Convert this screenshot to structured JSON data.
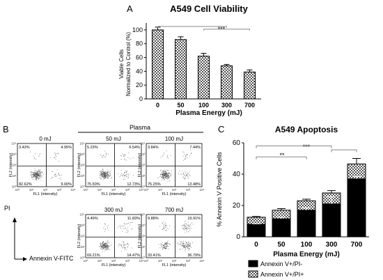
{
  "panel_a": {
    "letter": "A",
    "title": "A549 Cell Viability",
    "ylabel_line1": "Viable Cells",
    "ylabel_line2": "Normalized to Control (%)",
    "xlabel": "Plasma Energy (mJ)",
    "sig": "***"
  },
  "panel_b": {
    "letter": "B",
    "group_label": "Plasma",
    "pi_label": "PI",
    "annexin_label": "Annexin V-FITC",
    "x_axis_name": "FL1 (intensity)",
    "y_axis_name": "FL2 (intensity)",
    "tick_labels": [
      "10⁰",
      "10¹",
      "10²",
      "10³",
      "10⁴"
    ],
    "plots": [
      {
        "title": "0 mJ",
        "ul": "3.43%",
        "ur": "4.95%",
        "ll": "82.62%",
        "lr": "9.00%"
      },
      {
        "title": "50 mJ",
        "ul": "5.23%",
        "ur": "6.54%",
        "ll": "75.50%",
        "lr": "12.73%"
      },
      {
        "title": "100 mJ",
        "ul": "3.84%",
        "ur": "7.44%",
        "ll": "75.25%",
        "lr": "13.48%"
      },
      {
        "title": "300 mJ",
        "ul": "4.49%",
        "ur": "11.83%",
        "ll": "69.21%",
        "lr": "14.47%"
      },
      {
        "title": "700 mJ",
        "ul": "9.88%",
        "ur": "19.91%",
        "ll": "33.41%",
        "lr": "36.79%"
      }
    ]
  },
  "panel_c": {
    "letter": "C",
    "title": "A549 Apoptosis",
    "ylabel": "% Annexin V Positive Cells",
    "xlabel": "Plasma Energy (mJ)",
    "sig1": "**",
    "sig2": "***",
    "legend": [
      {
        "label": "Annexin V+/PI-"
      },
      {
        "label": "Annexin V+/PI+"
      }
    ]
  },
  "chart_data": [
    {
      "type": "bar",
      "title": "A549 Cell Viability",
      "categories": [
        "0",
        "50",
        "100",
        "300",
        "700"
      ],
      "values": [
        100,
        86,
        62,
        48,
        39
      ],
      "errors": [
        4,
        4,
        4,
        2,
        3
      ],
      "xlabel": "Plasma Energy (mJ)",
      "ylabel": "Viable Cells Normalized to Control (%)",
      "ylim": [
        0,
        110
      ],
      "yticks": [
        0,
        20,
        40,
        60,
        80,
        100
      ],
      "annotations": [
        "***"
      ]
    },
    {
      "type": "bar",
      "stacked": true,
      "title": "A549 Apoptosis",
      "categories": [
        "0",
        "50",
        "100",
        "300",
        "700"
      ],
      "series": [
        {
          "name": "Annexin V+/PI-",
          "values": [
            8.0,
            11.5,
            17.0,
            21.0,
            37.0
          ],
          "color": "#000000"
        },
        {
          "name": "Annexin V+/PI+",
          "values": [
            4.5,
            5.5,
            6.0,
            7.0,
            9.5
          ],
          "color": "#ffffff",
          "pattern": "checker"
        }
      ],
      "errors_total": [
        0.5,
        1.0,
        1.0,
        1.5,
        3.5
      ],
      "errors_lower": [
        0.3,
        1.0,
        1.5,
        4.5,
        1.5
      ],
      "xlabel": "Plasma Energy (mJ)",
      "ylabel": "% Annexin V Positive Cells",
      "ylim": [
        0,
        60
      ],
      "yticks": [
        0,
        20,
        40,
        60
      ],
      "annotations": [
        "**",
        "***"
      ]
    }
  ]
}
